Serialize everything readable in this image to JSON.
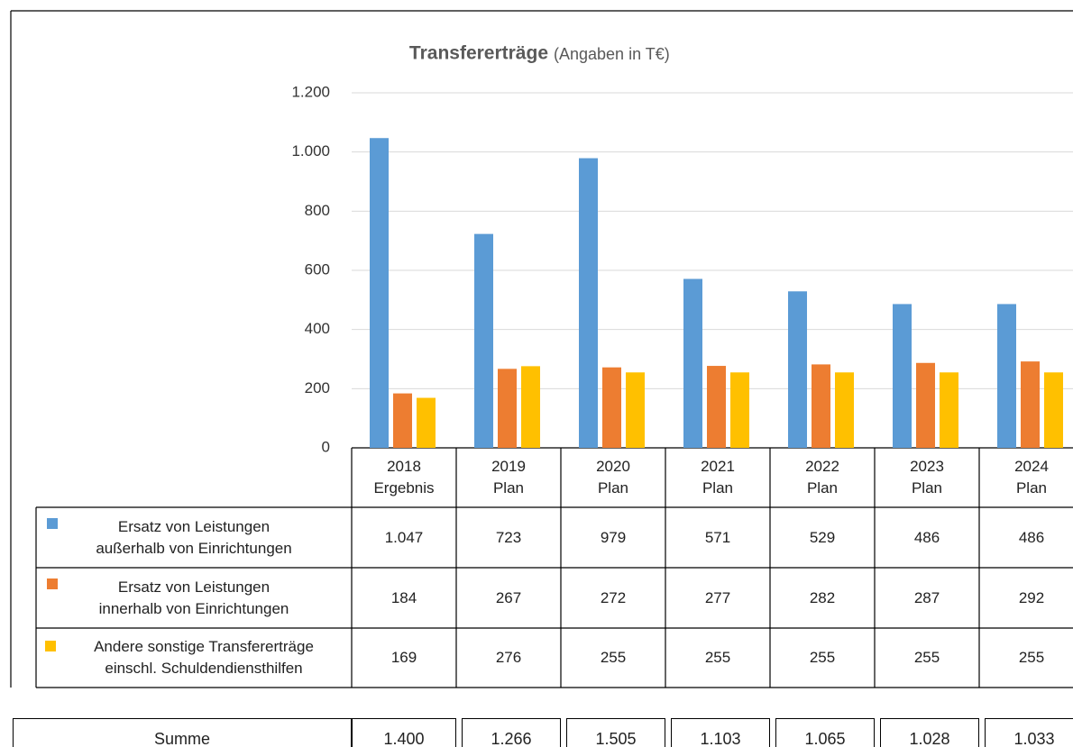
{
  "chart_data": {
    "type": "bar",
    "title": "Transfererträge",
    "subtitle": "(Angaben in T€)",
    "categories": [
      "2018\nErgebnis",
      "2019\nPlan",
      "2020\nPlan",
      "2021\nPlan",
      "2022\nPlan",
      "2023\nPlan",
      "2024\nPlan"
    ],
    "series": [
      {
        "name": "Ersatz von Leistungen\naußerhalb von Einrichtungen",
        "color": "#5b9bd5",
        "values": [
          1047,
          723,
          979,
          571,
          529,
          486,
          486
        ],
        "value_labels": [
          "1.047",
          "723",
          "979",
          "571",
          "529",
          "486",
          "486"
        ]
      },
      {
        "name": "Ersatz von Leistungen\ninnerhalb von Einrichtungen",
        "color": "#ed7d31",
        "values": [
          184,
          267,
          272,
          277,
          282,
          287,
          292
        ],
        "value_labels": [
          "184",
          "267",
          "272",
          "277",
          "282",
          "287",
          "292"
        ]
      },
      {
        "name": "Andere sonstige Transfererträge\neinschl. Schuldendiensthilfen",
        "color": "#ffc000",
        "values": [
          169,
          276,
          255,
          255,
          255,
          255,
          255
        ],
        "value_labels": [
          "169",
          "276",
          "255",
          "255",
          "255",
          "255",
          "255"
        ]
      }
    ],
    "ylim": [
      0,
      1200
    ],
    "yticks": [
      0,
      200,
      400,
      600,
      800,
      {
        "value": 1000,
        "label": "1.000"
      },
      {
        "value": 1200,
        "label": "1.200"
      }
    ],
    "grid": true,
    "summe": {
      "label": "Summe",
      "values": [
        1400,
        1266,
        1505,
        1103,
        1065,
        1028,
        1033
      ],
      "value_labels": [
        "1.400",
        "1.266",
        "1.505",
        "1.103",
        "1.065",
        "1.028",
        "1.033"
      ]
    }
  }
}
